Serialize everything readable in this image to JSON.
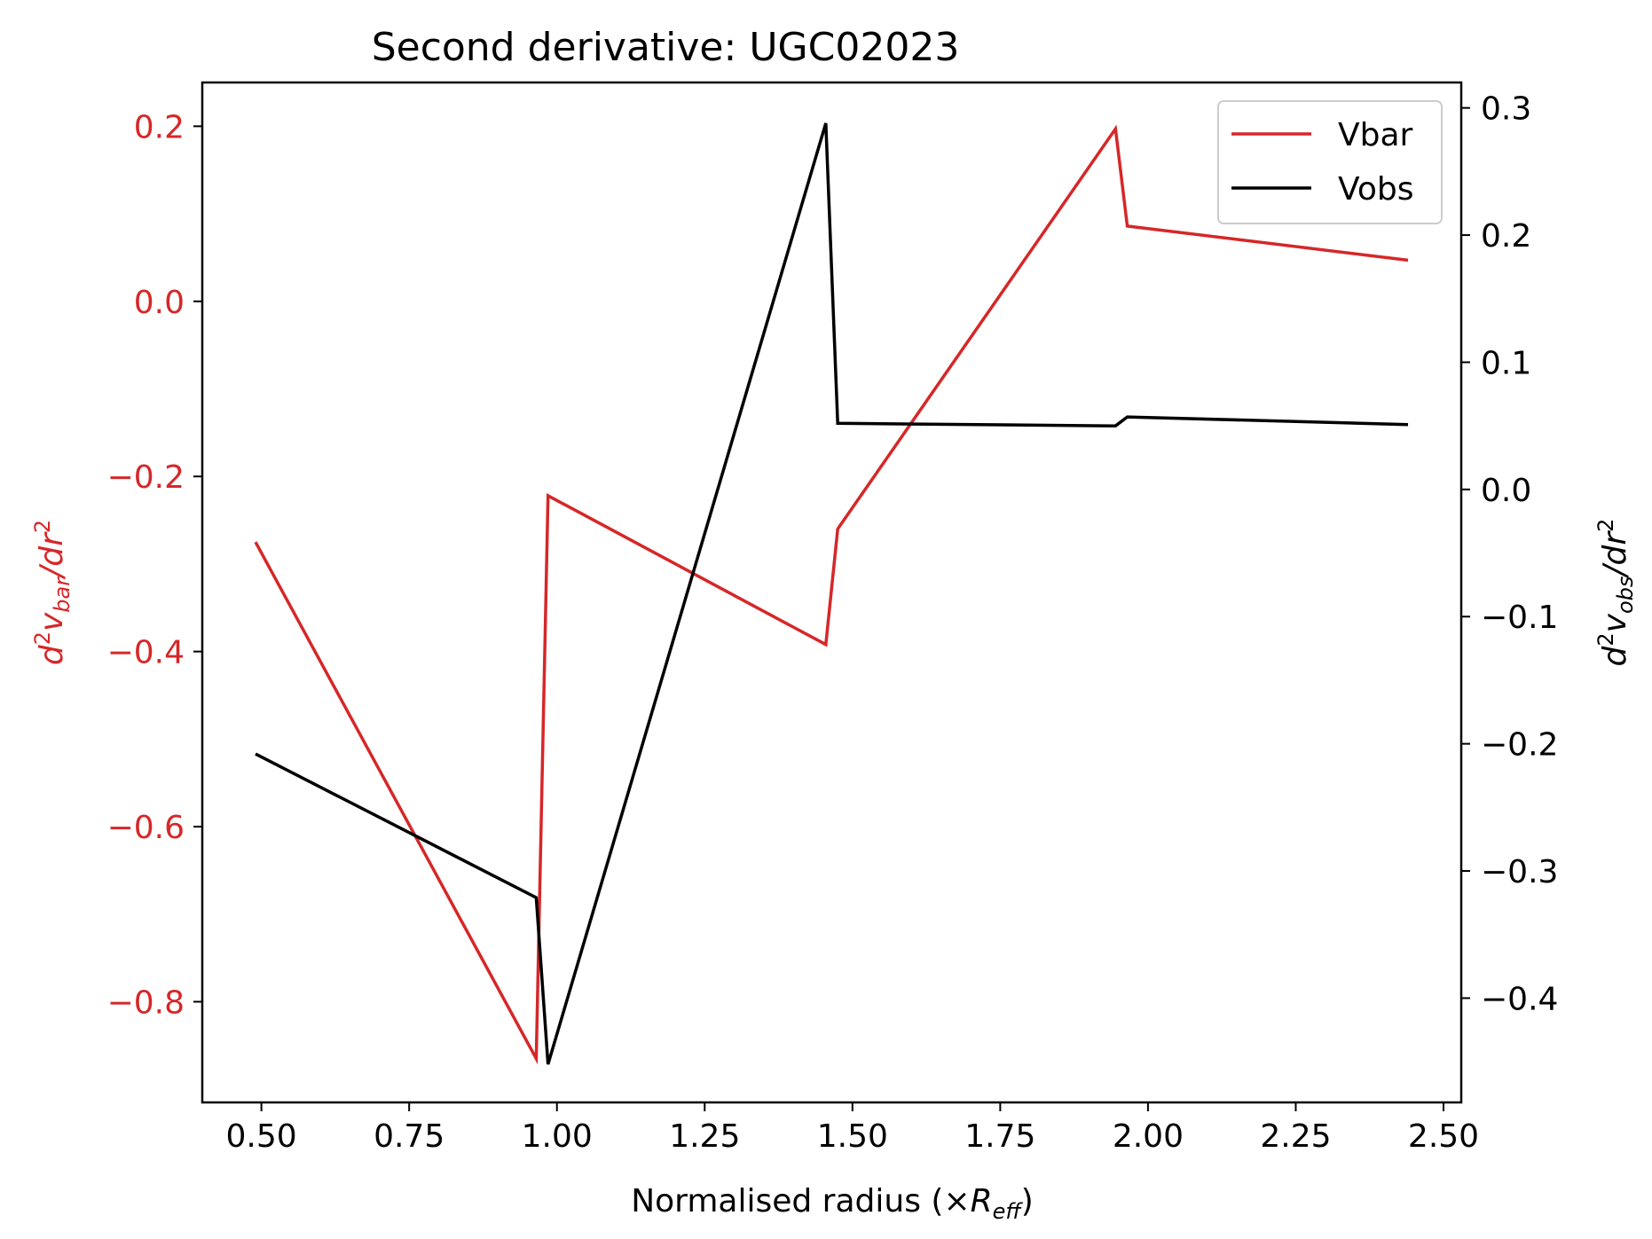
{
  "chart_data": {
    "type": "line",
    "title": "Second derivative: UGC02023",
    "xlabel": {
      "main": "Normalised radius (×",
      "italic": "R",
      "sub": "eff",
      "close": ")"
    },
    "ylabel_left": {
      "pre": "d",
      "sup": "2",
      "v": "v",
      "sub": "bar",
      "post": "/dr",
      "sup2": "2"
    },
    "ylabel_right": {
      "pre": "d",
      "sup": "2",
      "v": "v",
      "sub": "obs",
      "post": "/dr",
      "sup2": "2"
    },
    "xlim": [
      0.4,
      2.53
    ],
    "ylim_left": [
      -0.915,
      0.25
    ],
    "ylim_right": [
      -0.482,
      0.32
    ],
    "x_ticks": [
      "0.50",
      "0.75",
      "1.00",
      "1.25",
      "1.50",
      "1.75",
      "2.00",
      "2.25",
      "2.50"
    ],
    "x_tick_values": [
      0.5,
      0.75,
      1.0,
      1.25,
      1.5,
      1.75,
      2.0,
      2.25,
      2.5
    ],
    "y_left_ticks": [
      "−0.8",
      "−0.6",
      "−0.4",
      "−0.2",
      "0.0",
      "0.2"
    ],
    "y_left_tick_values": [
      -0.8,
      -0.6,
      -0.4,
      -0.2,
      0.0,
      0.2
    ],
    "y_right_ticks": [
      "−0.4",
      "−0.3",
      "−0.2",
      "−0.1",
      "0.0",
      "0.1",
      "0.2",
      "0.3"
    ],
    "y_right_tick_values": [
      -0.4,
      -0.3,
      -0.2,
      -0.1,
      0.0,
      0.1,
      0.2,
      0.3
    ],
    "legend_position": "top-right",
    "grid": false,
    "series": [
      {
        "name": "Vbar",
        "axis": "left",
        "color": "#d62728",
        "x": [
          0.49,
          0.965,
          0.985,
          1.455,
          1.475,
          1.945,
          1.965,
          2.44
        ],
        "y": [
          -0.275,
          -0.865,
          -0.222,
          -0.392,
          -0.26,
          0.197,
          0.086,
          0.047
        ]
      },
      {
        "name": "Vobs",
        "axis": "right",
        "color": "#000000",
        "x": [
          0.49,
          0.965,
          0.985,
          1.455,
          1.475,
          1.945,
          1.965,
          2.44
        ],
        "y": [
          -0.208,
          -0.321,
          -0.452,
          0.288,
          0.052,
          0.05,
          0.057,
          0.051
        ]
      }
    ]
  }
}
